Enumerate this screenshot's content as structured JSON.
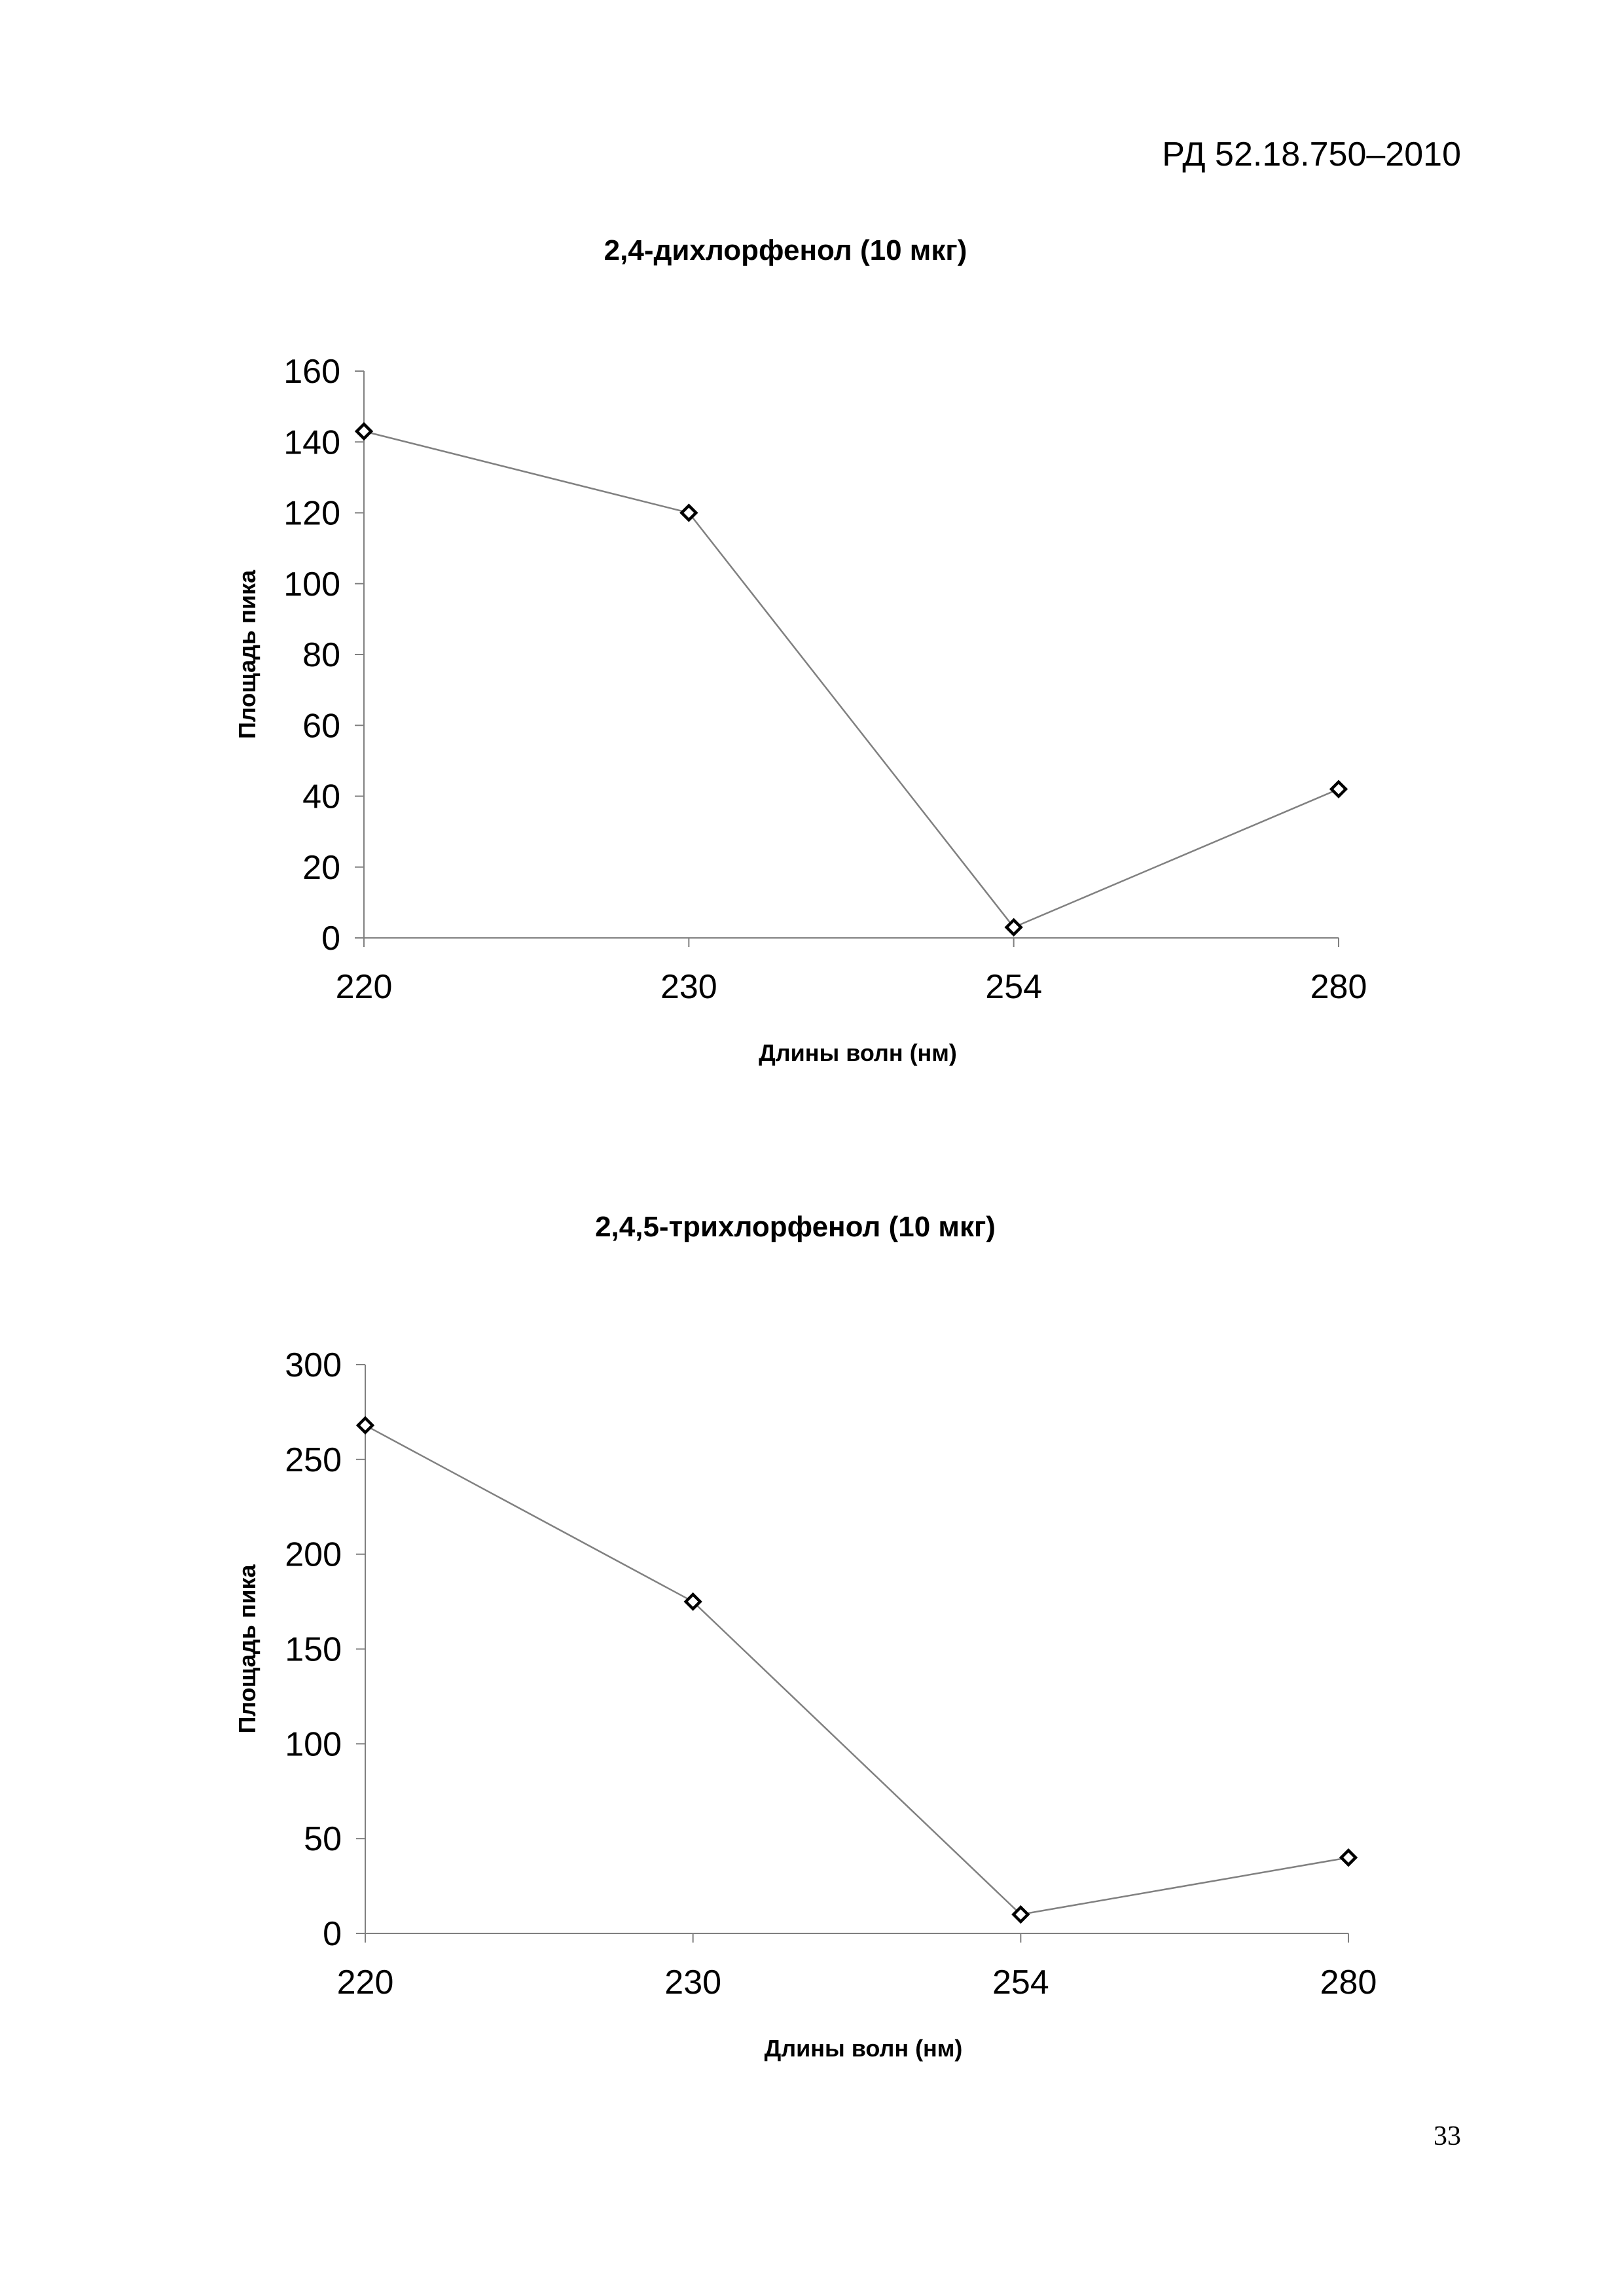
{
  "header": {
    "doc_code": "РД 52.18.750–2010"
  },
  "footer": {
    "page_number": "33"
  },
  "colors": {
    "line": "#808080",
    "axis": "#808080",
    "marker": "#000000"
  },
  "chart_data": [
    {
      "type": "line",
      "title": "2,4-дихлорфенол (10 мкг)",
      "xlabel": "Длины волн (нм)",
      "ylabel": "Площадь пика",
      "categories": [
        "220",
        "230",
        "254",
        "280"
      ],
      "values": [
        143,
        120,
        3,
        42
      ],
      "ylim": [
        0,
        160
      ],
      "yticks": [
        "0",
        "20",
        "40",
        "60",
        "80",
        "100",
        "120",
        "140",
        "160"
      ],
      "marker": "diamond",
      "grid": false,
      "legend": "none"
    },
    {
      "type": "line",
      "title": "2,4,5-трихлорфенол (10 мкг)",
      "xlabel": "Длины волн (нм)",
      "ylabel": "Площадь пика",
      "categories": [
        "220",
        "230",
        "254",
        "280"
      ],
      "values": [
        268,
        175,
        10,
        40
      ],
      "ylim": [
        0,
        300
      ],
      "yticks": [
        "0",
        "50",
        "100",
        "150",
        "200",
        "250",
        "300"
      ],
      "marker": "diamond",
      "grid": false,
      "legend": "none"
    }
  ]
}
